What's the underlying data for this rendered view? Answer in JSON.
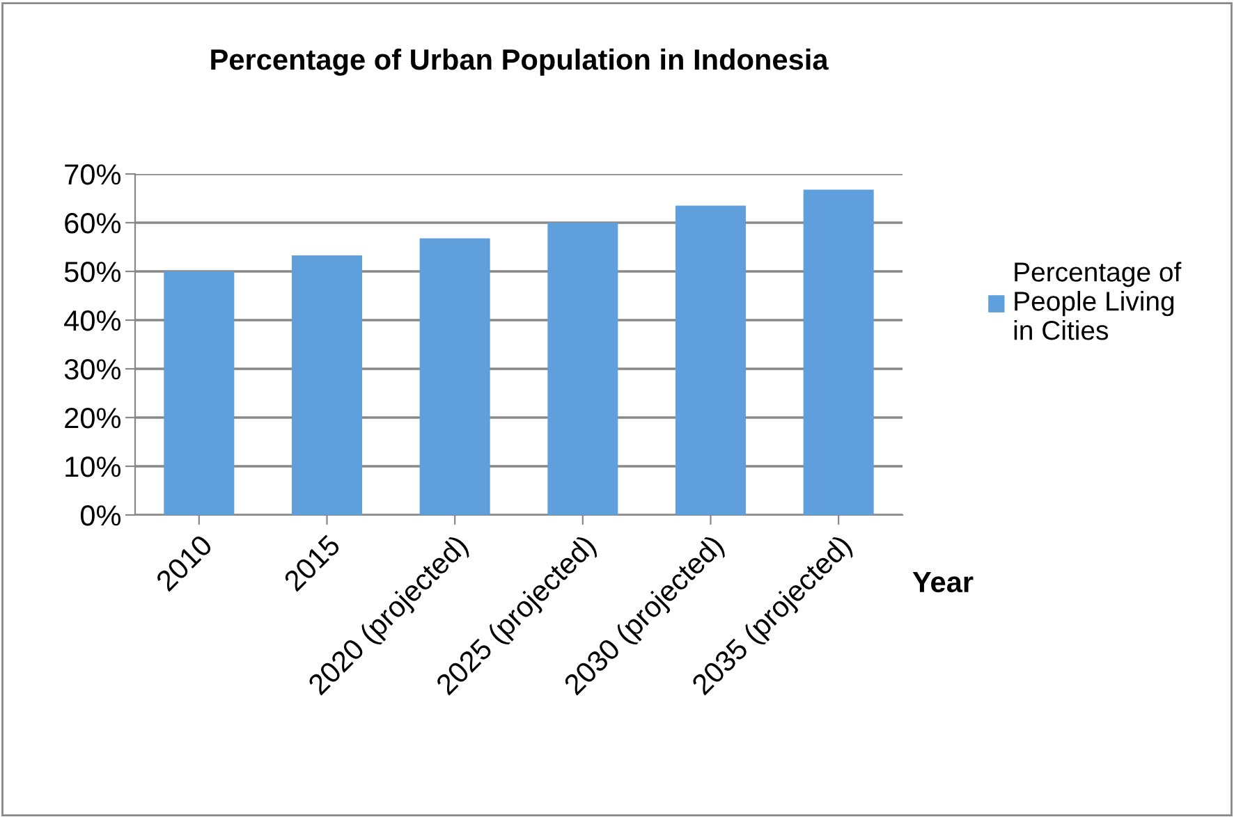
{
  "chart_data": {
    "type": "bar",
    "title": "Percentage of Urban Population in Indonesia",
    "xlabel": "Year",
    "categories": [
      "2010",
      "2015",
      "2020 (projected)",
      "2025 (projected)",
      "2030 (projected)",
      "2035 (projected)"
    ],
    "series": [
      {
        "name": "Percentage of People Living in Cities",
        "color": "#5f9fdb",
        "values": [
          50,
          53.3,
          56.8,
          60,
          63.5,
          66.8
        ]
      }
    ],
    "ylim": [
      0,
      70
    ],
    "yticks": [
      {
        "value": 0,
        "label": "0%"
      },
      {
        "value": 10,
        "label": "10%"
      },
      {
        "value": 20,
        "label": "20%"
      },
      {
        "value": 30,
        "label": "30%"
      },
      {
        "value": 40,
        "label": "40%"
      },
      {
        "value": 50,
        "label": "50%"
      },
      {
        "value": 60,
        "label": "60%"
      },
      {
        "value": 70,
        "label": "70%"
      }
    ],
    "grid": "y",
    "legend": "right"
  }
}
